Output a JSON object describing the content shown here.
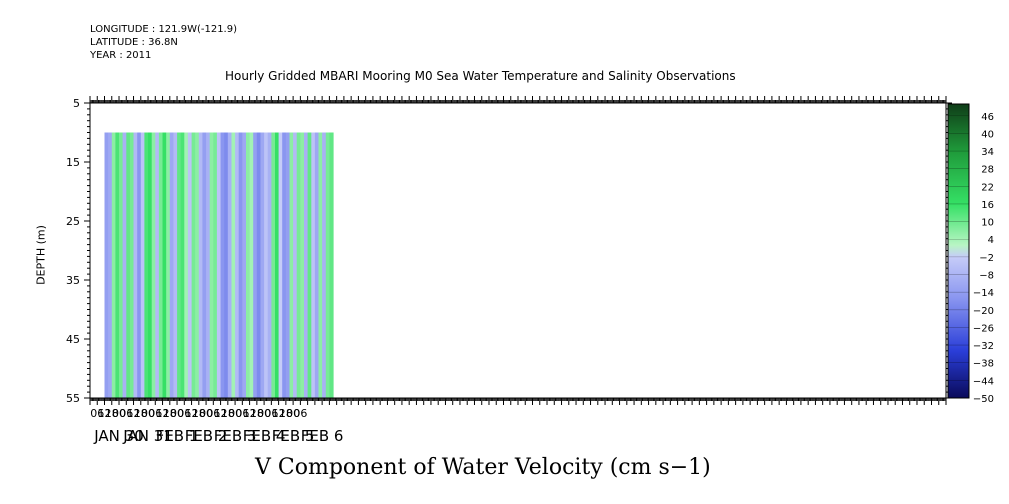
{
  "header": {
    "longitude": "LONGITUDE : 121.9W(-121.9)",
    "latitude": "LATITUDE : 36.8N",
    "year": "YEAR : 2011"
  },
  "chart_data": {
    "type": "heatmap",
    "title": "Hourly Gridded MBARI Mooring M0 Sea Water Temperature and Salinity Observations",
    "xlabel": "V Component of Water Velocity (cm s−1)",
    "ylabel": "DEPTH (m)",
    "y_range": [
      5,
      55
    ],
    "y_ticks": [
      5,
      15,
      25,
      35,
      45,
      55
    ],
    "y_inverted": true,
    "data_depth_top": 10,
    "x_hour_ticks": [
      "06",
      "12",
      "18",
      "00",
      "06",
      "12",
      "18",
      "00",
      "06",
      "12",
      "18",
      "00",
      "06",
      "12",
      "18",
      "00",
      "06",
      "12",
      "18",
      "00",
      "06",
      "12",
      "18",
      "00",
      "06",
      "12",
      "18",
      "00",
      "06"
    ],
    "x_day_labels": [
      "JAN 30",
      "JAN 31",
      "FEB  1",
      "FEB  2",
      "FEB  3",
      "FEB  4",
      "FEB  5",
      "FEB  6"
    ],
    "colorbar": {
      "ticks": [
        46,
        40,
        34,
        28,
        22,
        16,
        10,
        4,
        -2,
        -8,
        -14,
        -20,
        -26,
        -32,
        -38,
        -44,
        -50
      ],
      "range": [
        -50,
        50
      ]
    },
    "bands": [
      {
        "time": "Jan 29 12:00",
        "v": -12
      },
      {
        "time": "Jan 29 15:00",
        "v": -10
      },
      {
        "time": "Jan 29 18:00",
        "v": 6
      },
      {
        "time": "Jan 29 21:00",
        "v": 12
      },
      {
        "time": "Jan 30 00:00",
        "v": 8
      },
      {
        "time": "Jan 30 03:00",
        "v": -8
      },
      {
        "time": "Jan 30 06:00",
        "v": 10
      },
      {
        "time": "Jan 30 09:00",
        "v": 8
      },
      {
        "time": "Jan 30 12:00",
        "v": -6
      },
      {
        "time": "Jan 30 15:00",
        "v": -14
      },
      {
        "time": "Jan 30 18:00",
        "v": -4
      },
      {
        "time": "Jan 30 21:00",
        "v": 12
      },
      {
        "time": "Jan 31 00:00",
        "v": 14
      },
      {
        "time": "Jan 31 03:00",
        "v": 6
      },
      {
        "time": "Jan 31 06:00",
        "v": -6
      },
      {
        "time": "Jan 31 09:00",
        "v": 8
      },
      {
        "time": "Jan 31 12:00",
        "v": 14
      },
      {
        "time": "Jan 31 15:00",
        "v": 6
      },
      {
        "time": "Jan 31 18:00",
        "v": -10
      },
      {
        "time": "Jan 31 21:00",
        "v": -6
      },
      {
        "time": "Feb 1 00:00",
        "v": 10
      },
      {
        "time": "Feb 1 03:00",
        "v": 12
      },
      {
        "time": "Feb 1 06:00",
        "v": 4
      },
      {
        "time": "Feb 1 09:00",
        "v": -4
      },
      {
        "time": "Feb 1 12:00",
        "v": 8
      },
      {
        "time": "Feb 1 15:00",
        "v": 6
      },
      {
        "time": "Feb 1 18:00",
        "v": -6
      },
      {
        "time": "Feb 1 21:00",
        "v": -12
      },
      {
        "time": "Feb 2 00:00",
        "v": -8
      },
      {
        "time": "Feb 2 03:00",
        "v": 6
      },
      {
        "time": "Feb 2 06:00",
        "v": 8
      },
      {
        "time": "Feb 2 09:00",
        "v": -4
      },
      {
        "time": "Feb 2 12:00",
        "v": -14
      },
      {
        "time": "Feb 2 15:00",
        "v": -16
      },
      {
        "time": "Feb 2 18:00",
        "v": -8
      },
      {
        "time": "Feb 2 21:00",
        "v": 4
      },
      {
        "time": "Feb 3 00:00",
        "v": -6
      },
      {
        "time": "Feb 3 03:00",
        "v": -14
      },
      {
        "time": "Feb 3 06:00",
        "v": -10
      },
      {
        "time": "Feb 3 09:00",
        "v": 6
      },
      {
        "time": "Feb 3 12:00",
        "v": 4
      },
      {
        "time": "Feb 3 15:00",
        "v": -12
      },
      {
        "time": "Feb 3 18:00",
        "v": -16
      },
      {
        "time": "Feb 3 21:00",
        "v": -10
      },
      {
        "time": "Feb 4 00:00",
        "v": -4
      },
      {
        "time": "Feb 4 03:00",
        "v": -8
      },
      {
        "time": "Feb 4 06:00",
        "v": 8
      },
      {
        "time": "Feb 4 09:00",
        "v": 14
      },
      {
        "time": "Feb 4 12:00",
        "v": -2
      },
      {
        "time": "Feb 4 15:00",
        "v": -14
      },
      {
        "time": "Feb 4 18:00",
        "v": -12
      },
      {
        "time": "Feb 4 21:00",
        "v": 6
      },
      {
        "time": "Feb 5 00:00",
        "v": -6
      },
      {
        "time": "Feb 5 03:00",
        "v": 8
      },
      {
        "time": "Feb 5 06:00",
        "v": 6
      },
      {
        "time": "Feb 5 09:00",
        "v": -8
      },
      {
        "time": "Feb 5 12:00",
        "v": 10
      },
      {
        "time": "Feb 5 15:00",
        "v": -4
      },
      {
        "time": "Feb 5 18:00",
        "v": -10
      },
      {
        "time": "Feb 5 21:00",
        "v": 6
      },
      {
        "time": "Feb 6 00:00",
        "v": -8
      },
      {
        "time": "Feb 6 03:00",
        "v": 8
      },
      {
        "time": "Feb 6 06:00",
        "v": 10
      }
    ]
  }
}
